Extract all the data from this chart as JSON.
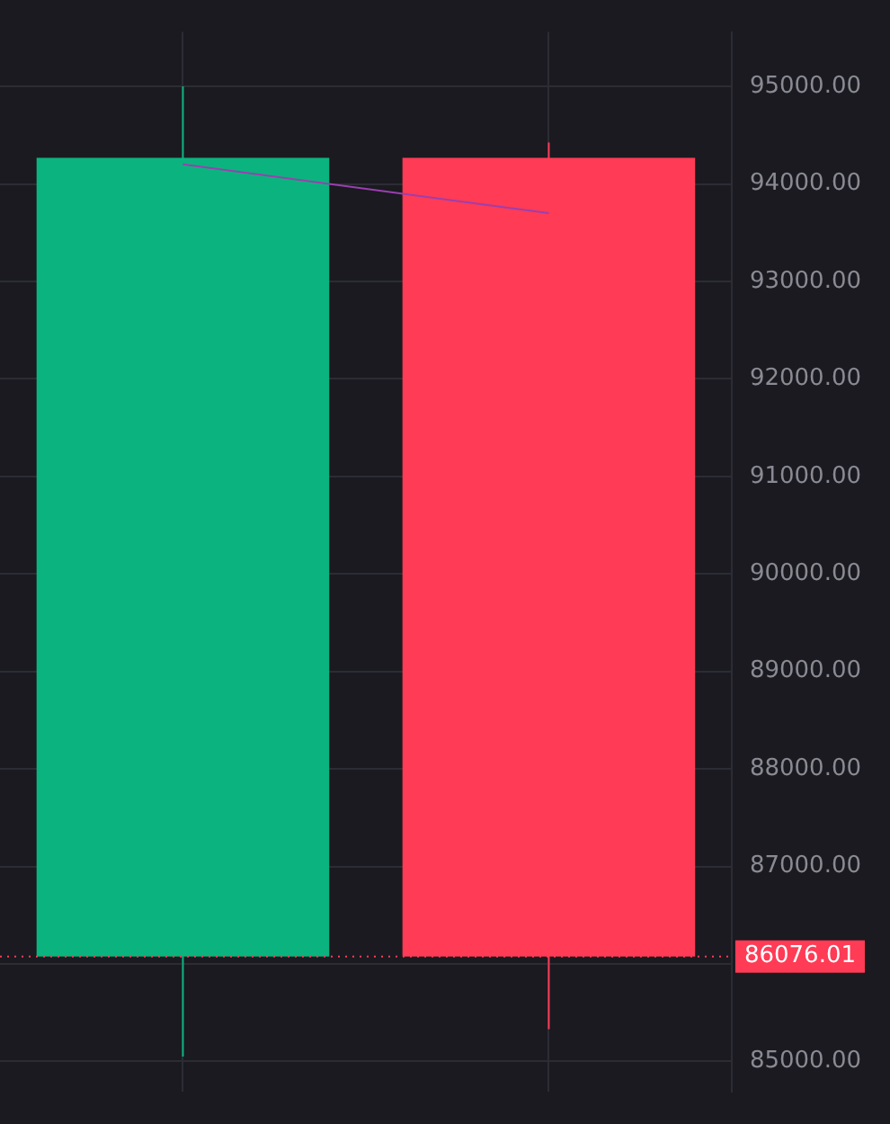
{
  "chart_data": {
    "type": "candlestick",
    "categories": [
      null,
      null
    ],
    "ohlc": [
      [
        86076,
        95000,
        85050,
        94268
      ],
      [
        94268,
        94425,
        85330,
        86076
      ]
    ],
    "colors": [
      "#0bb47e",
      "#ff3b55"
    ],
    "series": [
      {
        "type": "line",
        "color": "#9b3fb0",
        "values": [
          94200,
          93700
        ]
      }
    ],
    "ylim": [
      84686,
      95558
    ],
    "yticks": [
      {
        "value": 85000,
        "label": "85000.00"
      },
      {
        "value": 86000,
        "label": null
      },
      {
        "value": 87000,
        "label": "87000.00"
      },
      {
        "value": 88000,
        "label": "88000.00"
      },
      {
        "value": 89000,
        "label": "89000.00"
      },
      {
        "value": 90000,
        "label": "90000.00"
      },
      {
        "value": 91000,
        "label": "91000.00"
      },
      {
        "value": 92000,
        "label": "92000.00"
      },
      {
        "value": 93000,
        "label": "93000.00"
      },
      {
        "value": 94000,
        "label": "94000.00"
      },
      {
        "value": 95000,
        "label": "95000.00"
      }
    ],
    "ref_lines": [
      {
        "axis": "y",
        "value": 86076.01,
        "label": "86076.01",
        "color": "#ff3b55",
        "line_style": "dotted"
      }
    ],
    "grid": true,
    "legend": false,
    "marker": "none"
  }
}
